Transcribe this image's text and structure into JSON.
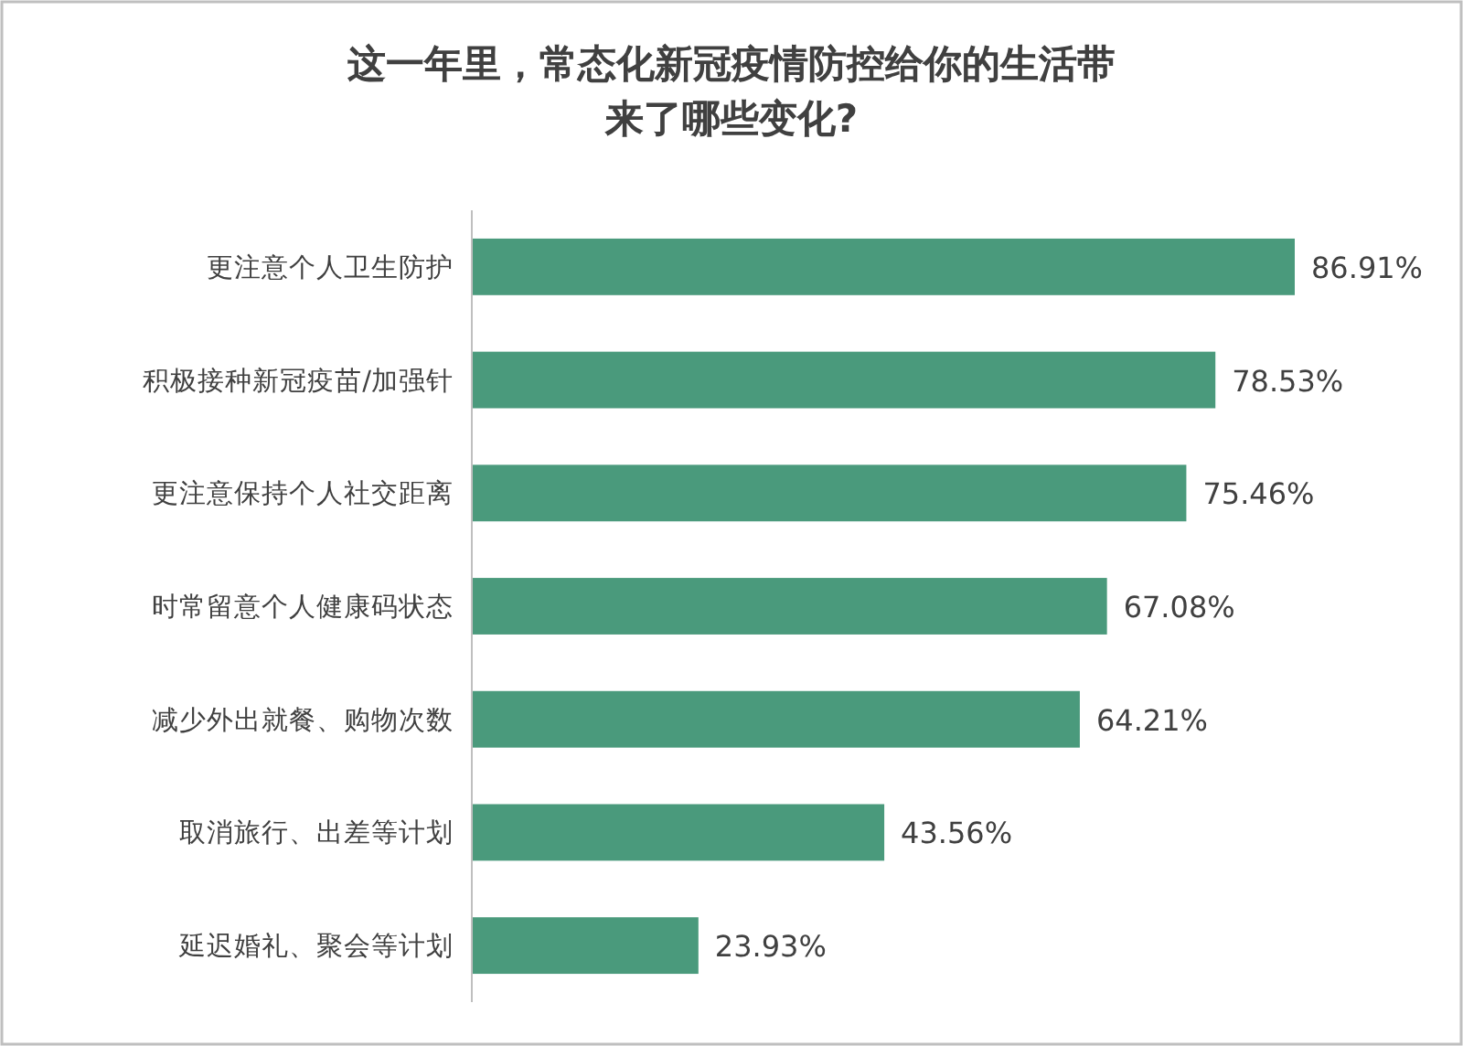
{
  "chart_data": {
    "type": "bar",
    "orientation": "horizontal",
    "title": "这一年里，常态化新冠疫情防控给你的生活带来了哪些变化?",
    "categories": [
      "更注意个人卫生防护",
      "积极接种新冠疫苗/加强针",
      "更注意保持个人社交距离",
      "时常留意个人健康码状态",
      "减少外出就餐、购物次数",
      "取消旅行、出差等计划",
      "延迟婚礼、聚会等计划"
    ],
    "values": [
      86.91,
      78.53,
      75.46,
      67.08,
      64.21,
      43.56,
      23.93
    ],
    "value_labels": [
      "86.91%",
      "78.53%",
      "75.46%",
      "67.08%",
      "64.21%",
      "43.56%",
      "23.93%"
    ],
    "color": "#4a9a7c"
  }
}
